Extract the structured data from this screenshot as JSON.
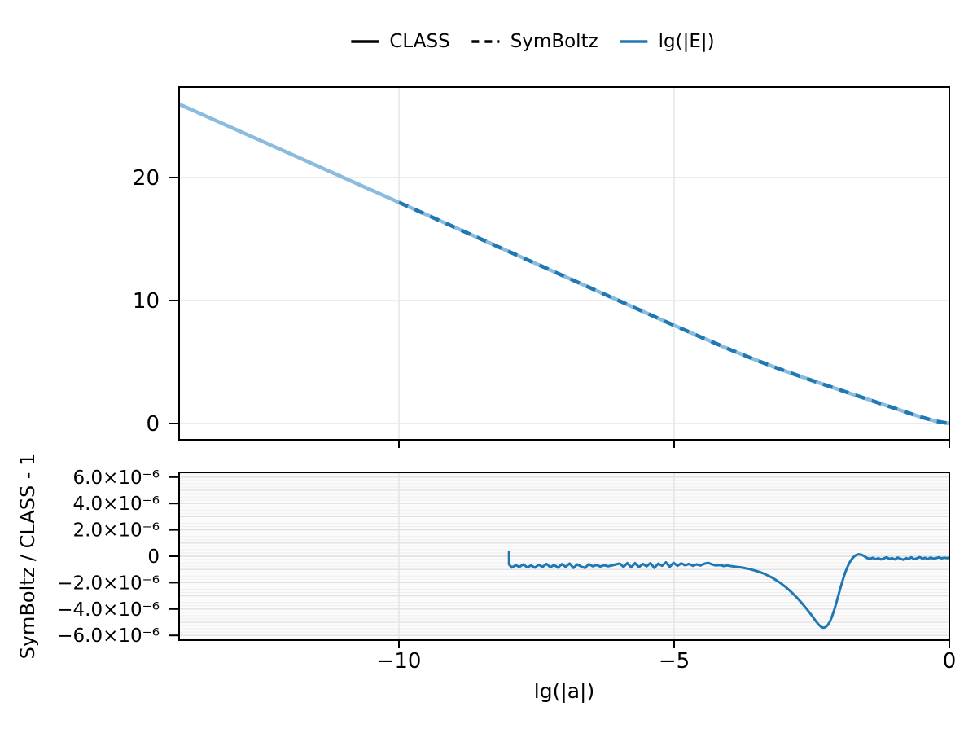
{
  "figure": {
    "background": "#ffffff",
    "xlabel": "lg(|a|)",
    "residual_ylabel": "SymBoltz / CLASS - 1",
    "legend": {
      "position": "top-center",
      "frame": false,
      "items": [
        {
          "label": "CLASS",
          "line_style": "solid",
          "color": "#000000"
        },
        {
          "label": "SymBoltz",
          "line_style": "dashed",
          "color": "#000000"
        },
        {
          "label": "lg(|E|)",
          "line_style": "solid",
          "color": "#1f77b4"
        }
      ]
    },
    "colors": {
      "accent_blue": "#1f77b4",
      "class_curve_blue": "#8abcde",
      "grid_gray": "#e6e6e6",
      "stripe_minor": "#eeeeee",
      "stripe_major": "#e0e0e0",
      "spine": "#000000"
    }
  },
  "chart_data": [
    {
      "id": "main-panel",
      "type": "line",
      "title": "",
      "xlabel": "lg(|a|)",
      "ylabel": "",
      "xlim": [
        -14,
        0
      ],
      "ylim": [
        -1.32,
        27.35
      ],
      "grid": true,
      "xticks": {
        "values": [
          -10,
          -5,
          0
        ],
        "labels": [
          "−10",
          "−5",
          "0"
        ]
      },
      "yticks": {
        "values": [
          0,
          10,
          20
        ],
        "labels": [
          "0",
          "10",
          "20"
        ]
      },
      "x": [
        -14,
        -13.5,
        -13,
        -12.5,
        -12,
        -11.5,
        -11,
        -10.5,
        -10,
        -9.5,
        -9,
        -8.5,
        -8,
        -7.5,
        -7,
        -6.5,
        -6,
        -5.75,
        -5.5,
        -5.25,
        -5,
        -4.75,
        -4.5,
        -4.25,
        -4,
        -3.75,
        -3.5,
        -3.25,
        -3,
        -2.75,
        -2.5,
        -2.25,
        -2,
        -1.75,
        -1.5,
        -1.25,
        -1,
        -0.75,
        -0.5,
        -0.25,
        0
      ],
      "y": [
        25.98,
        24.98,
        23.98,
        22.98,
        21.98,
        20.98,
        19.98,
        18.98,
        17.98,
        16.98,
        15.98,
        14.98,
        13.98,
        12.98,
        11.98,
        10.98,
        9.98,
        9.48,
        8.98,
        8.48,
        7.98,
        7.49,
        7.0,
        6.52,
        6.04,
        5.58,
        5.14,
        4.71,
        4.3,
        3.9,
        3.51,
        3.13,
        2.75,
        2.37,
        2.0,
        1.62,
        1.25,
        0.87,
        0.51,
        0.19,
        0.0
      ],
      "series": [
        {
          "name": "CLASS",
          "quantity": "lg(|E|)",
          "draw": "solid",
          "color": "#8abcde",
          "width": 4.5
        },
        {
          "name": "SymBoltz",
          "quantity": "lg(|E|)",
          "draw": "dashed",
          "color": "#1f77b4",
          "width": 4.5,
          "dash": [
            12,
            9
          ],
          "visible_from_x": -10.3
        }
      ],
      "note": "CLASS and SymBoltz curves coincide visually; shared x/y arrays above"
    },
    {
      "id": "residual-panel",
      "type": "line",
      "ylabel": "SymBoltz / CLASS - 1",
      "xlim": [
        -14,
        0
      ],
      "ylim": [
        -6.36e-06,
        6.36e-06
      ],
      "grid": "horizontal stripes, minor every 2.5e-7, major every 1e-6",
      "xticks": {
        "values": [
          -10,
          -5,
          0
        ],
        "labels": [
          "−10",
          "−5",
          "0"
        ]
      },
      "yticks": {
        "values": [
          6e-06,
          4e-06,
          2e-06,
          0,
          -2e-06,
          -4e-06,
          -6e-06
        ],
        "labels": [
          "6.0×10⁻⁶",
          "4.0×10⁻⁶",
          "2.0×10⁻⁶",
          "0",
          "−2.0×10⁻⁶",
          "−4.0×10⁻⁶",
          "−6.0×10⁻⁶"
        ]
      },
      "series": [
        {
          "name": "SymBoltz / CLASS - 1",
          "color": "#1f77b4",
          "width": 3,
          "y_unit": 1e-06,
          "points_x": [
            -8.0,
            -8.0,
            -7.95,
            -7.88,
            -7.81,
            -7.74,
            -7.67,
            -7.6,
            -7.53,
            -7.46,
            -7.39,
            -7.32,
            -7.25,
            -7.18,
            -7.11,
            -7.04,
            -6.97,
            -6.9,
            -6.83,
            -6.76,
            -6.69,
            -6.62,
            -6.55,
            -6.48,
            -6.41,
            -6.34,
            -6.27,
            -6.2,
            -6.13,
            -6.06,
            -5.99,
            -5.92,
            -5.85,
            -5.78,
            -5.71,
            -5.64,
            -5.57,
            -5.5,
            -5.43,
            -5.36,
            -5.29,
            -5.22,
            -5.15,
            -5.08,
            -5.01,
            -4.94,
            -4.87,
            -4.8,
            -4.73,
            -4.66,
            -4.59,
            -4.52,
            -4.45,
            -4.38,
            -4.31,
            -4.24,
            -4.17,
            -4.1,
            -4.03,
            -3.95,
            -3.87,
            -3.79,
            -3.71,
            -3.63,
            -3.55,
            -3.47,
            -3.39,
            -3.31,
            -3.23,
            -3.15,
            -3.07,
            -2.99,
            -2.91,
            -2.83,
            -2.75,
            -2.67,
            -2.59,
            -2.53,
            -2.47,
            -2.42,
            -2.37,
            -2.33,
            -2.29,
            -2.25,
            -2.21,
            -2.17,
            -2.13,
            -2.09,
            -2.05,
            -2.01,
            -1.97,
            -1.93,
            -1.89,
            -1.85,
            -1.81,
            -1.77,
            -1.73,
            -1.69,
            -1.65,
            -1.61,
            -1.57,
            -1.53,
            -1.49,
            -1.44,
            -1.39,
            -1.34,
            -1.29,
            -1.24,
            -1.19,
            -1.14,
            -1.09,
            -1.04,
            -0.99,
            -0.94,
            -0.89,
            -0.84,
            -0.79,
            -0.74,
            -0.69,
            -0.64,
            -0.59,
            -0.54,
            -0.49,
            -0.44,
            -0.39,
            -0.34,
            -0.29,
            -0.24,
            -0.19,
            -0.14,
            -0.09,
            -0.04,
            0.0
          ],
          "points_y_1e6": [
            0.38,
            -0.62,
            -0.85,
            -0.68,
            -0.8,
            -0.62,
            -0.84,
            -0.7,
            -0.86,
            -0.64,
            -0.8,
            -0.58,
            -0.83,
            -0.66,
            -0.86,
            -0.6,
            -0.8,
            -0.55,
            -0.88,
            -0.62,
            -0.78,
            -0.88,
            -0.6,
            -0.76,
            -0.66,
            -0.78,
            -0.68,
            -0.76,
            -0.7,
            -0.62,
            -0.55,
            -0.8,
            -0.52,
            -0.84,
            -0.52,
            -0.82,
            -0.58,
            -0.76,
            -0.52,
            -0.88,
            -0.56,
            -0.72,
            -0.46,
            -0.8,
            -0.5,
            -0.72,
            -0.54,
            -0.68,
            -0.58,
            -0.72,
            -0.62,
            -0.7,
            -0.56,
            -0.5,
            -0.62,
            -0.7,
            -0.66,
            -0.74,
            -0.7,
            -0.76,
            -0.8,
            -0.84,
            -0.9,
            -0.97,
            -1.06,
            -1.16,
            -1.28,
            -1.43,
            -1.6,
            -1.8,
            -2.02,
            -2.28,
            -2.56,
            -2.88,
            -3.22,
            -3.6,
            -4.0,
            -4.32,
            -4.65,
            -4.95,
            -5.2,
            -5.35,
            -5.42,
            -5.38,
            -5.22,
            -4.95,
            -4.55,
            -4.05,
            -3.48,
            -2.88,
            -2.28,
            -1.72,
            -1.22,
            -0.8,
            -0.46,
            -0.2,
            -0.02,
            0.1,
            0.15,
            0.13,
            0.06,
            -0.04,
            -0.14,
            -0.2,
            -0.12,
            -0.22,
            -0.14,
            -0.24,
            -0.16,
            -0.08,
            -0.2,
            -0.14,
            -0.24,
            -0.1,
            -0.18,
            -0.26,
            -0.14,
            -0.2,
            -0.08,
            -0.22,
            -0.16,
            -0.06,
            -0.18,
            -0.12,
            -0.22,
            -0.1,
            -0.18,
            -0.14,
            -0.08,
            -0.16,
            -0.11,
            -0.14,
            -0.1
          ]
        }
      ]
    }
  ]
}
